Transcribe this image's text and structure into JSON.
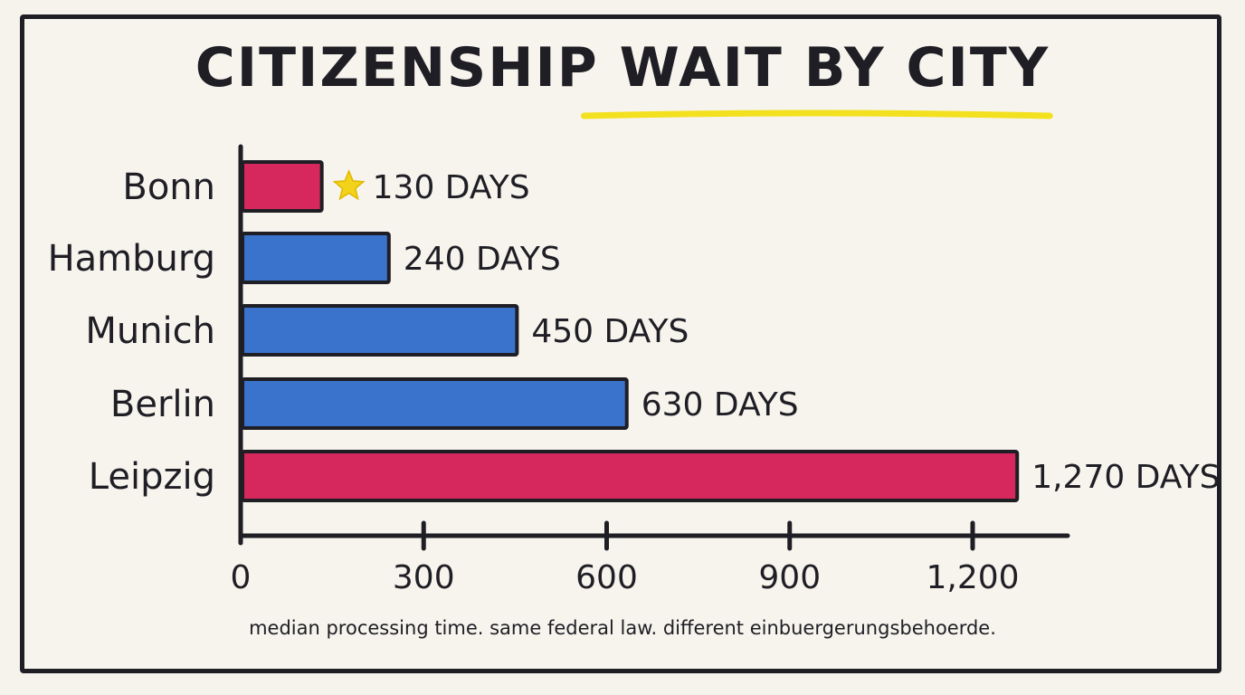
{
  "chart_data": {
    "type": "bar",
    "orientation": "horizontal",
    "title": "CITIZENSHIP WAIT BY CITY",
    "subtitle": "median processing time. same federal law. different einbuergerungsbehoerde.",
    "categories": [
      "Bonn",
      "Hamburg",
      "Munich",
      "Berlin",
      "Leipzig"
    ],
    "values": [
      130,
      240,
      450,
      630,
      1270
    ],
    "value_labels": [
      "130 DAYS",
      "240 DAYS",
      "450 DAYS",
      "630 DAYS",
      "1,270 DAYS"
    ],
    "bar_colors": [
      "#d6285d",
      "#3a73cc",
      "#3a73cc",
      "#3a73cc",
      "#d6285d"
    ],
    "highlight_marker": {
      "category": "Bonn",
      "icon": "star-icon",
      "color": "#f3d21a"
    },
    "title_underline_color": "#f3e01f",
    "xlim": [
      0,
      1350
    ],
    "xticks": [
      0,
      300,
      600,
      900,
      1200
    ],
    "xtick_labels": [
      "0",
      "300",
      "600",
      "900",
      "1,200"
    ],
    "grid": false,
    "xlabel": "",
    "ylabel": ""
  }
}
